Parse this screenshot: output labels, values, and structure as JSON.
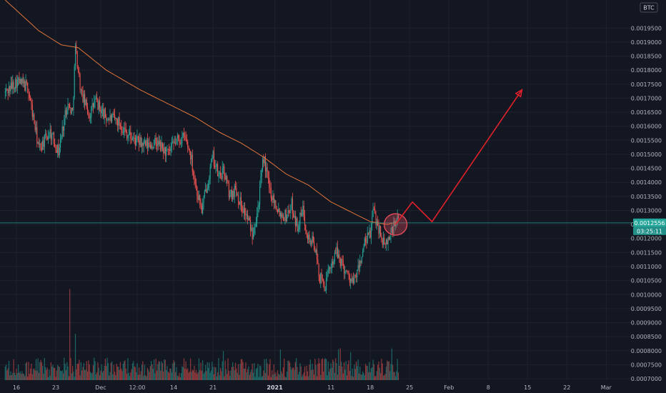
{
  "chart_data": {
    "type": "candlestick",
    "currency_badge": "BTC",
    "current_price_label": "0.0012556",
    "countdown_label": "03:25:11",
    "colors": {
      "up": "#26a69a",
      "down": "#ef5350",
      "moving_average": "#e0733a",
      "forecast_arrow": "#e0202a",
      "highlight_ellipse": "#d94a5a",
      "price_line": "#26a69a",
      "price_label_bg": "#26a69a"
    },
    "yaxis": {
      "ylim": [
        0.000695,
        0.00205
      ],
      "ticks": [
        "0.0007000",
        "0.0007500",
        "0.0008000",
        "0.0008500",
        "0.0009000",
        "0.0009500",
        "0.0010000",
        "0.0010500",
        "0.0011000",
        "0.0011500",
        "0.0012000",
        "0.0012500",
        "0.0013000",
        "0.0013500",
        "0.0014000",
        "0.0014500",
        "0.0015000",
        "0.0015500",
        "0.0016000",
        "0.0016500",
        "0.0017000",
        "0.0017500",
        "0.0018000",
        "0.0018500",
        "0.0019000",
        "0.0019500"
      ]
    },
    "xaxis": {
      "ticks": [
        {
          "label": "16",
          "day": 0
        },
        {
          "label": "23",
          "day": 7
        },
        {
          "label": "Dec",
          "day": 15
        },
        {
          "label": "12:00",
          "day": 21.5
        },
        {
          "label": "14",
          "day": 28
        },
        {
          "label": "21",
          "day": 35
        },
        {
          "label": "2021",
          "day": 46,
          "bold": true
        },
        {
          "label": "11",
          "day": 56
        },
        {
          "label": "18",
          "day": 63
        },
        {
          "label": "25",
          "day": 70
        },
        {
          "label": "Feb",
          "day": 77
        },
        {
          "label": "8",
          "day": 84
        },
        {
          "label": "15",
          "day": 91
        },
        {
          "label": "22",
          "day": 98
        },
        {
          "label": "Mar",
          "day": 105
        }
      ]
    },
    "price_path": [
      [
        -2,
        0.00172
      ],
      [
        0,
        0.00176
      ],
      [
        2,
        0.00174
      ],
      [
        4,
        0.00152
      ],
      [
        6,
        0.00158
      ],
      [
        7.5,
        0.00151
      ],
      [
        9,
        0.00168
      ],
      [
        10,
        0.00165
      ],
      [
        10.5,
        0.00188
      ],
      [
        11.5,
        0.00172
      ],
      [
        13,
        0.00164
      ],
      [
        14,
        0.00169
      ],
      [
        16,
        0.00163
      ],
      [
        18,
        0.00162
      ],
      [
        19.5,
        0.00158
      ],
      [
        21,
        0.00155
      ],
      [
        23,
        0.00153
      ],
      [
        25,
        0.00154
      ],
      [
        27,
        0.0015
      ],
      [
        28.5,
        0.00155
      ],
      [
        30,
        0.00156
      ],
      [
        31,
        0.0015
      ],
      [
        32,
        0.00138
      ],
      [
        33,
        0.0013
      ],
      [
        34,
        0.0014
      ],
      [
        35,
        0.00149
      ],
      [
        36,
        0.00142
      ],
      [
        37,
        0.00144
      ],
      [
        38,
        0.00135
      ],
      [
        39,
        0.00138
      ],
      [
        40,
        0.00132
      ],
      [
        41,
        0.00128
      ],
      [
        42,
        0.00122
      ],
      [
        43,
        0.00131
      ],
      [
        44,
        0.00149
      ],
      [
        45,
        0.00138
      ],
      [
        46,
        0.00133
      ],
      [
        47,
        0.00129
      ],
      [
        48,
        0.00128
      ],
      [
        49,
        0.00132
      ],
      [
        50,
        0.00124
      ],
      [
        51,
        0.0013
      ],
      [
        52,
        0.0012
      ],
      [
        53,
        0.00118
      ],
      [
        54,
        0.00106
      ],
      [
        55,
        0.00103
      ],
      [
        56,
        0.00111
      ],
      [
        57,
        0.00115
      ],
      [
        58,
        0.00111
      ],
      [
        59,
        0.00107
      ],
      [
        60,
        0.00104
      ],
      [
        61,
        0.0011
      ],
      [
        62,
        0.00118
      ],
      [
        63,
        0.00122
      ],
      [
        63.5,
        0.0013
      ],
      [
        64.5,
        0.00124
      ],
      [
        65.5,
        0.00117
      ],
      [
        66.5,
        0.00121
      ],
      [
        67.5,
        0.00126
      ],
      [
        68,
        0.00126
      ]
    ],
    "moving_average_path": [
      [
        -2,
        0.00205
      ],
      [
        4,
        0.00194
      ],
      [
        8,
        0.00189
      ],
      [
        11,
        0.00188
      ],
      [
        16,
        0.0018
      ],
      [
        22,
        0.00173
      ],
      [
        28,
        0.00167
      ],
      [
        32,
        0.00163
      ],
      [
        36,
        0.00158
      ],
      [
        40,
        0.00154
      ],
      [
        44,
        0.00149
      ],
      [
        48,
        0.00143
      ],
      [
        52,
        0.00139
      ],
      [
        56,
        0.00133
      ],
      [
        60,
        0.00129
      ],
      [
        63,
        0.00126
      ],
      [
        66,
        0.00125
      ],
      [
        68,
        0.00126
      ]
    ],
    "volume": {
      "spike_days": [
        9.5,
        10.5
      ],
      "spike_levels": [
        0.00102,
        0.00086
      ]
    },
    "forecast_path": [
      [
        67.5,
        0.00125
      ],
      [
        70.5,
        0.00133
      ],
      [
        74,
        0.00126
      ],
      [
        90,
        0.00173
      ]
    ],
    "highlight": {
      "day": 67.5,
      "value": 0.00125
    }
  }
}
